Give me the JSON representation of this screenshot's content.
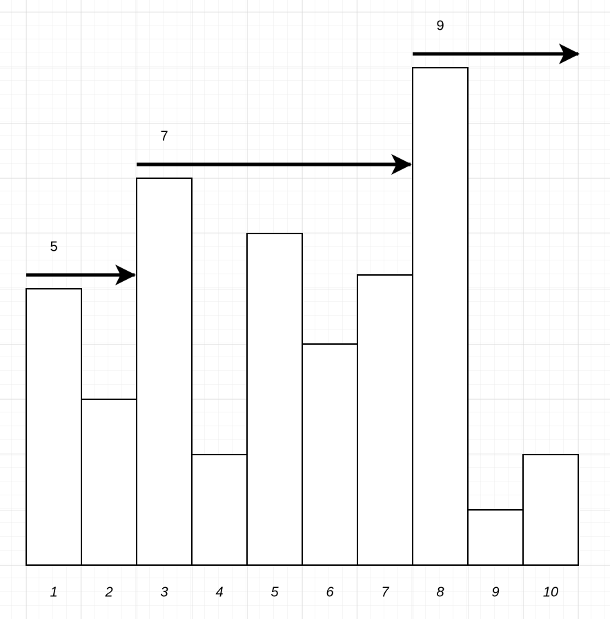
{
  "chart_data": {
    "type": "bar",
    "categories": [
      "1",
      "2",
      "3",
      "4",
      "5",
      "6",
      "7",
      "8",
      "9",
      "10"
    ],
    "values": [
      5,
      3,
      7,
      2,
      6,
      4,
      5.25,
      9,
      1,
      2
    ],
    "color": "#ffffff"
  }
}
